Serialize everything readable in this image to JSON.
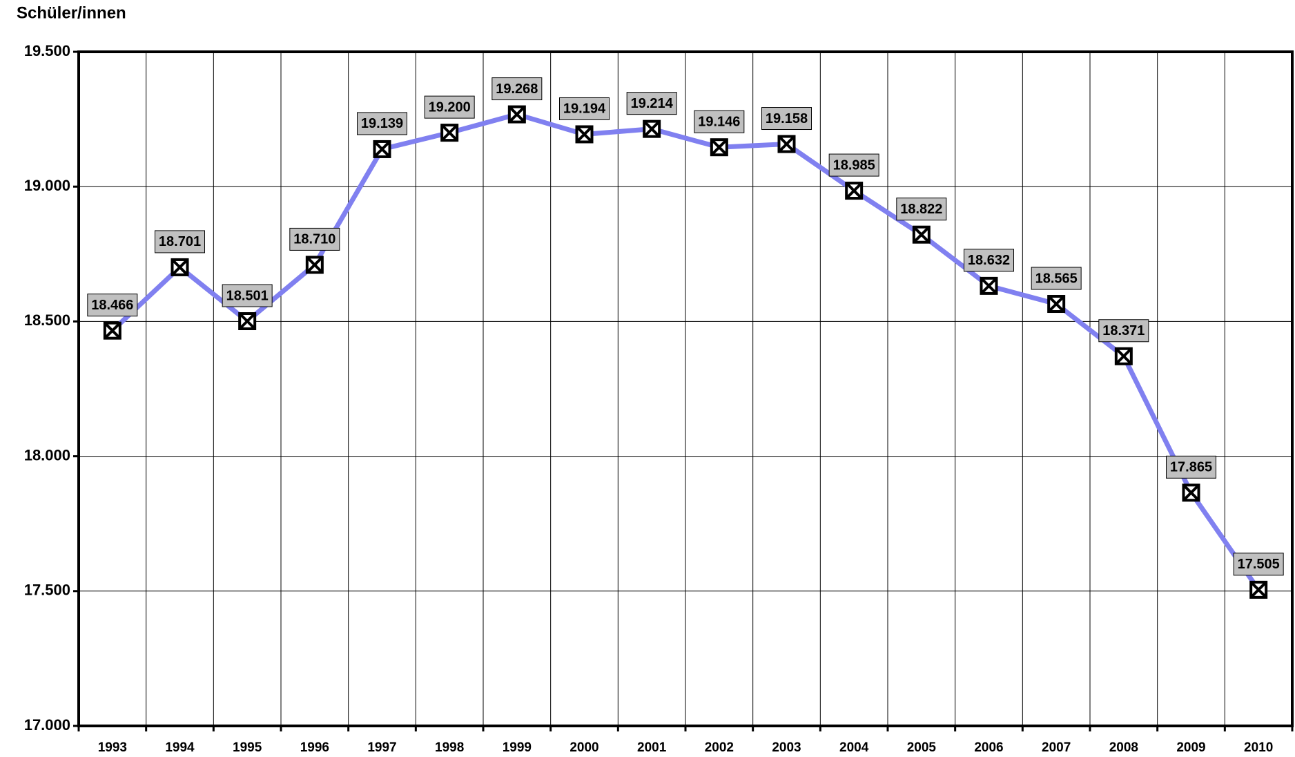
{
  "chart_data": {
    "type": "line",
    "title": "Schüler/innen",
    "categories": [
      "1993",
      "1994",
      "1995",
      "1996",
      "1997",
      "1998",
      "1999",
      "2000",
      "2001",
      "2002",
      "2003",
      "2004",
      "2005",
      "2006",
      "2007",
      "2008",
      "2009",
      "2010"
    ],
    "values": [
      18466,
      18701,
      18501,
      18710,
      19139,
      19200,
      19268,
      19194,
      19214,
      19146,
      19158,
      18985,
      18822,
      18632,
      18565,
      18371,
      17865,
      17505
    ],
    "value_labels": [
      "18.466",
      "18.701",
      "18.501",
      "18.710",
      "19.139",
      "19.200",
      "19.268",
      "19.194",
      "19.214",
      "19.146",
      "19.158",
      "18.985",
      "18.822",
      "18.632",
      "18.565",
      "18.371",
      "17.865",
      "17.505"
    ],
    "color": "#8080f0",
    "ylim": [
      17000,
      19500
    ],
    "yticks": [
      {
        "value": 17000,
        "label": "17.000"
      },
      {
        "value": 17500,
        "label": "17.500"
      },
      {
        "value": 18000,
        "label": "18.000"
      },
      {
        "value": 18500,
        "label": "18.500"
      },
      {
        "value": 19000,
        "label": "19.000"
      },
      {
        "value": 19500,
        "label": "19.500"
      }
    ],
    "grid": true
  }
}
